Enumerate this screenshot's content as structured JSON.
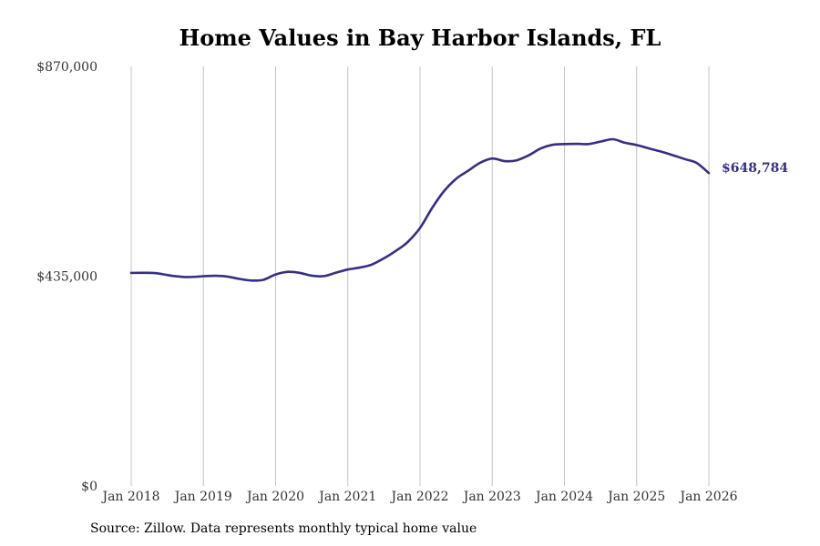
{
  "chart_data": {
    "type": "line",
    "title": "Home Values in Bay Harbor Islands, FL",
    "xlabel": "",
    "ylabel": "",
    "ylim": [
      0,
      870000
    ],
    "y_ticks": [
      {
        "value": 0,
        "label": "$0"
      },
      {
        "value": 435000,
        "label": "$435,000"
      },
      {
        "value": 870000,
        "label": "$870,000"
      }
    ],
    "x_ticks": [
      {
        "value": 2018.0,
        "label": "Jan 2018"
      },
      {
        "value": 2019.0,
        "label": "Jan 2019"
      },
      {
        "value": 2020.0,
        "label": "Jan 2020"
      },
      {
        "value": 2021.0,
        "label": "Jan 2021"
      },
      {
        "value": 2022.0,
        "label": "Jan 2022"
      },
      {
        "value": 2023.0,
        "label": "Jan 2023"
      },
      {
        "value": 2024.0,
        "label": "Jan 2024"
      },
      {
        "value": 2025.0,
        "label": "Jan 2025"
      },
      {
        "value": 2026.0,
        "label": "Jan 2026"
      }
    ],
    "xlim": [
      2018.0,
      2026.0
    ],
    "grid": "vertical",
    "series": [
      {
        "name": "Typical home value",
        "color": "#352f85",
        "end_label": "$648,784",
        "points": [
          [
            2018.0,
            441800
          ],
          [
            2018.17,
            442000
          ],
          [
            2018.33,
            441500
          ],
          [
            2018.5,
            437500
          ],
          [
            2018.58,
            435500
          ],
          [
            2018.75,
            433300
          ],
          [
            2018.92,
            434000
          ],
          [
            2019.0,
            435000
          ],
          [
            2019.17,
            435800
          ],
          [
            2019.33,
            434200
          ],
          [
            2019.5,
            429300
          ],
          [
            2019.67,
            426000
          ],
          [
            2019.83,
            427500
          ],
          [
            2020.0,
            438500
          ],
          [
            2020.17,
            444000
          ],
          [
            2020.33,
            442000
          ],
          [
            2020.5,
            436000
          ],
          [
            2020.67,
            435200
          ],
          [
            2020.83,
            442000
          ],
          [
            2021.0,
            448800
          ],
          [
            2021.17,
            453000
          ],
          [
            2021.33,
            459000
          ],
          [
            2021.5,
            472000
          ],
          [
            2021.67,
            488000
          ],
          [
            2021.83,
            506000
          ],
          [
            2022.0,
            535000
          ],
          [
            2022.17,
            577000
          ],
          [
            2022.33,
            611000
          ],
          [
            2022.5,
            637000
          ],
          [
            2022.67,
            654000
          ],
          [
            2022.83,
            670000
          ],
          [
            2023.0,
            679000
          ],
          [
            2023.17,
            673700
          ],
          [
            2023.33,
            675000
          ],
          [
            2023.5,
            685300
          ],
          [
            2023.67,
            699700
          ],
          [
            2023.83,
            707300
          ],
          [
            2024.0,
            709000
          ],
          [
            2024.17,
            709500
          ],
          [
            2024.33,
            709000
          ],
          [
            2024.5,
            714000
          ],
          [
            2024.67,
            719000
          ],
          [
            2024.83,
            712000
          ],
          [
            2025.0,
            707000
          ],
          [
            2025.17,
            700000
          ],
          [
            2025.33,
            693800
          ],
          [
            2025.5,
            686000
          ],
          [
            2025.67,
            677600
          ],
          [
            2025.83,
            670000
          ],
          [
            2026.0,
            648784
          ]
        ]
      }
    ]
  },
  "footer": {
    "source": "Source: Zillow. Data represents monthly typical home value"
  }
}
